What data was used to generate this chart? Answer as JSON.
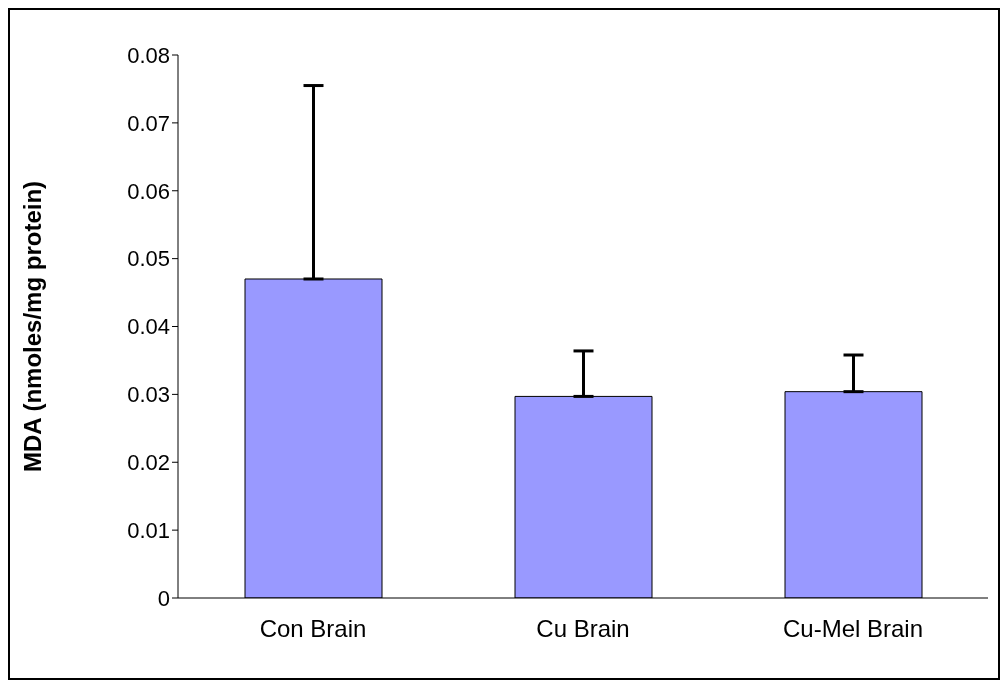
{
  "chart_data": {
    "type": "bar",
    "ylabel": "MDA (nmoles/mg protein)",
    "categories": [
      "Con Brain",
      "Cu Brain",
      "Cu-Mel Brain"
    ],
    "values": [
      0.047,
      0.0297,
      0.0304
    ],
    "errors": [
      [
        0.047,
        0.0755
      ],
      [
        0.0297,
        0.0364
      ],
      [
        0.0304,
        0.0358
      ]
    ],
    "color": "#9999ff",
    "ylim": [
      0,
      0.08
    ],
    "yticks": [
      0,
      0.01,
      0.02,
      0.03,
      0.04,
      0.05,
      0.06,
      0.07,
      0.08
    ],
    "grid": false,
    "legend": false
  }
}
